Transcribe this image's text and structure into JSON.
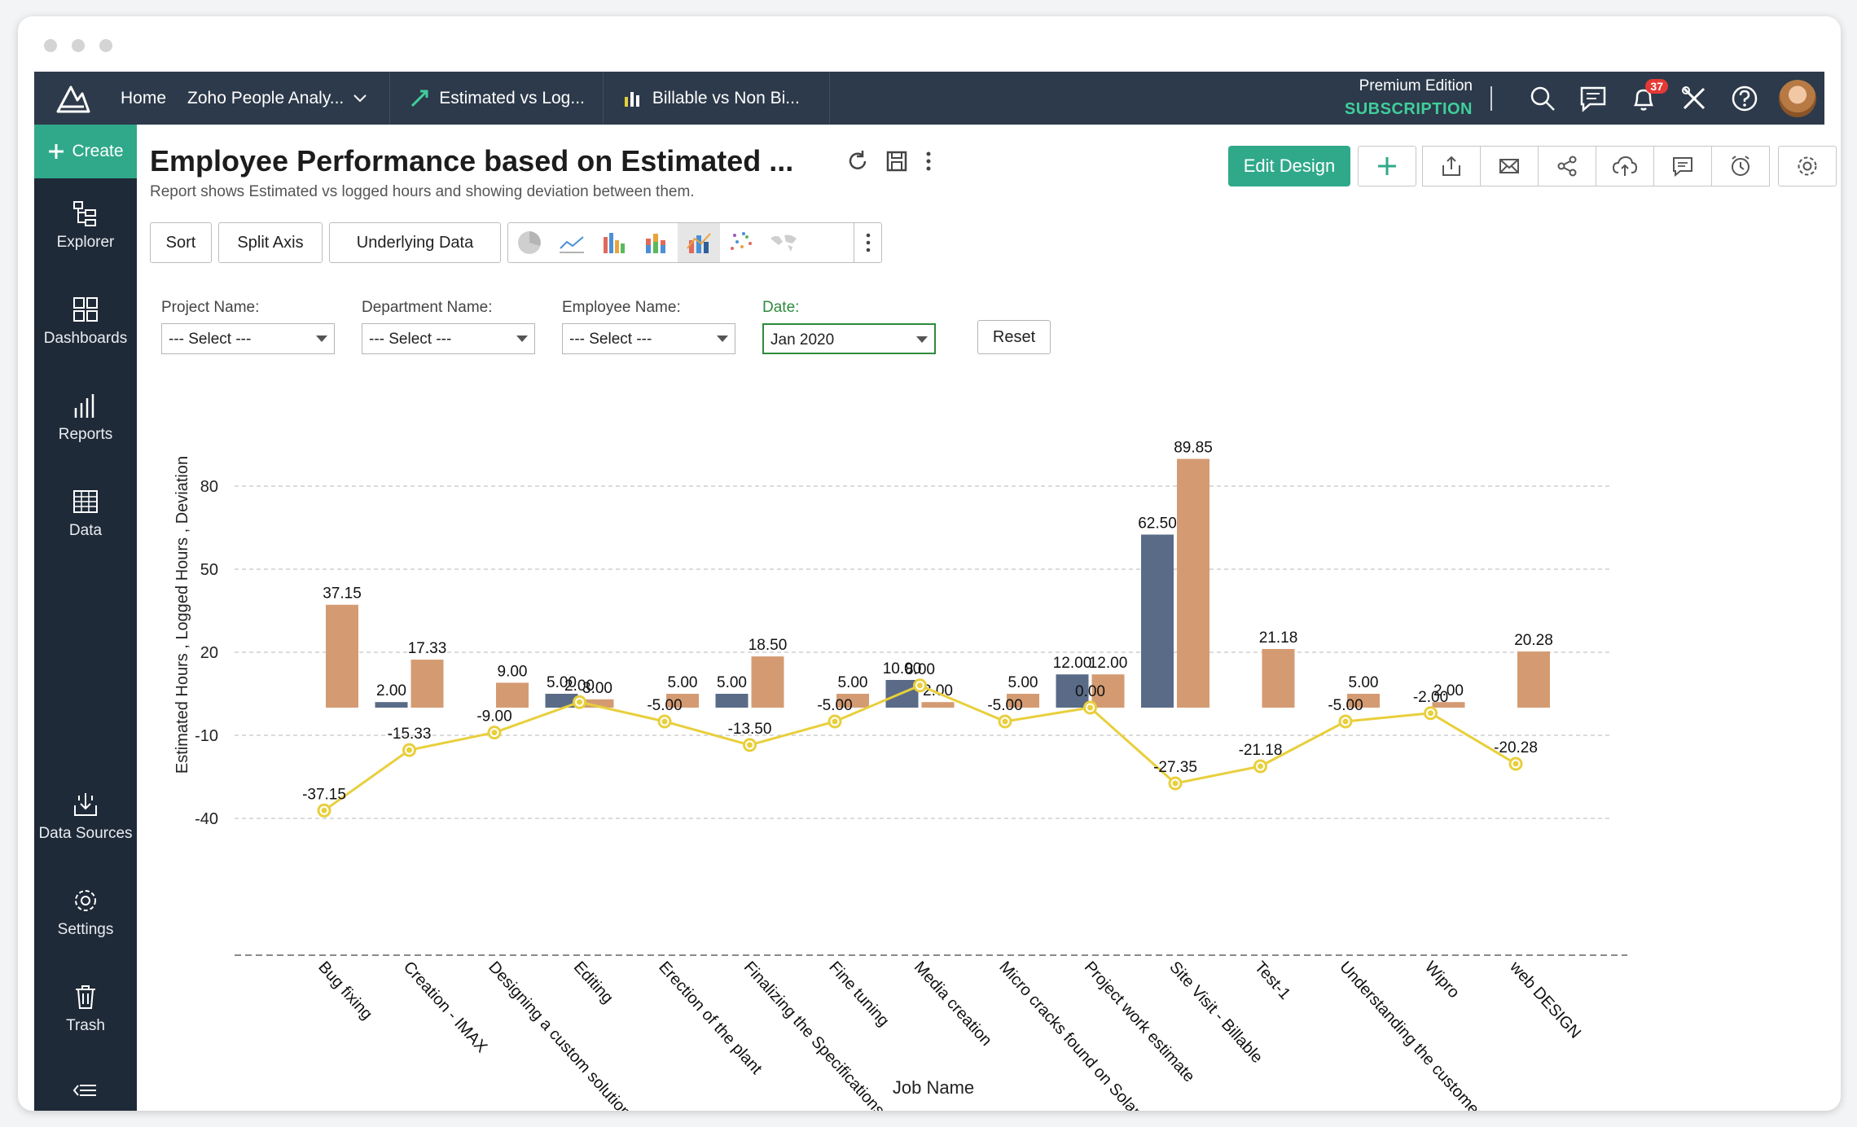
{
  "window": {
    "dots": [
      "",
      "",
      ""
    ]
  },
  "topbar": {
    "home": "Home",
    "workspace": "Zoho People Analy...",
    "tabs": [
      {
        "label": "Estimated vs Log...",
        "icon": "line-chart-icon"
      },
      {
        "label": "Billable vs Non Bi...",
        "icon": "bar-chart-icon"
      }
    ],
    "edition_line1": "Premium Edition",
    "edition_line2": "SUBSCRIPTION",
    "notification_count": "37"
  },
  "sidebar": {
    "create": "Create",
    "items": [
      {
        "label": "Explorer",
        "icon": "explorer-icon"
      },
      {
        "label": "Dashboards",
        "icon": "dashboards-icon"
      },
      {
        "label": "Reports",
        "icon": "reports-icon"
      },
      {
        "label": "Data",
        "icon": "data-icon"
      },
      {
        "label": "Data Sources",
        "icon": "data-sources-icon"
      },
      {
        "label": "Settings",
        "icon": "settings-icon"
      },
      {
        "label": "Trash",
        "icon": "trash-icon"
      }
    ]
  },
  "report": {
    "title": "Employee Performance based on Estimated ...",
    "subtitle": "Report shows Estimated vs logged hours and showing deviation between them.",
    "edit_design": "Edit Design"
  },
  "toolbar": {
    "sort": "Sort",
    "split_axis": "Split Axis",
    "underlying_data": "Underlying Data"
  },
  "filters": {
    "project_label": "Project Name:",
    "project_value": "--- Select ---",
    "department_label": "Department Name:",
    "department_value": "--- Select ---",
    "employee_label": "Employee Name:",
    "employee_value": "--- Select ---",
    "date_label": "Date:",
    "date_value": "Jan 2020",
    "reset": "Reset"
  },
  "colors": {
    "estimated": "#5a6b87",
    "logged": "#d49b72",
    "deviation": "#e8cf3c",
    "accent": "#2fa98a",
    "topbar": "#2d3a4b",
    "sidebar": "#1f2a38"
  },
  "chart_data": {
    "type": "bar",
    "xlabel": "Job Name",
    "ylabel": "Estimated Hours , Logged Hours , Deviation",
    "yticks": [
      80,
      50,
      20,
      -10,
      -40
    ],
    "ylim": [
      -50,
      95
    ],
    "grid": true,
    "categories": [
      "Bug fixing",
      "Creation - IMAX",
      "Designing a custom solution - Billab..",
      "Editing",
      "Erection of the plant",
      "Finalizing the Specifications",
      "Fine tuning",
      "Media creation",
      "Micro cracks found on Solar panel",
      "Project work estimate",
      "Site Visit - Billable",
      "Test-1",
      "Understanding the customer requir..",
      "Wipro",
      "web DESIGN"
    ],
    "series": [
      {
        "type": "bar",
        "values": [
          0,
          2.0,
          0,
          5.0,
          0,
          5.0,
          0,
          10.0,
          0,
          12.0,
          62.5,
          0,
          0,
          0,
          0
        ],
        "labels": [
          "",
          "2.00",
          "",
          "5.00",
          "",
          "5.00",
          "",
          "10.00",
          "",
          "12.00",
          "62.50",
          "",
          "",
          "",
          ""
        ]
      },
      {
        "type": "bar",
        "values": [
          37.15,
          17.33,
          9.0,
          3.0,
          5.0,
          18.5,
          5.0,
          2.0,
          5.0,
          12.0,
          89.85,
          21.18,
          5.0,
          2.0,
          20.28
        ],
        "labels": [
          "37.15",
          "17.33",
          "9.00",
          "3.00",
          "5.00",
          "18.50",
          "5.00",
          "2.00",
          "5.00",
          "12.00",
          "89.85",
          "21.18",
          "5.00",
          "2.00",
          "20.28"
        ]
      },
      {
        "type": "line",
        "values": [
          -37.15,
          -15.33,
          -9.0,
          2.0,
          -5.0,
          -13.5,
          -5.0,
          8.0,
          -5.0,
          0.0,
          -27.35,
          -21.18,
          -5.0,
          -2.0,
          -20.28
        ],
        "labels": [
          "-37.15",
          "-15.33",
          "-9.00",
          "2.00",
          "-5.00",
          "-13.50",
          "-5.00",
          "8.00",
          "-5.00",
          "0.00",
          "-27.35",
          "-21.18",
          "-5.00",
          "-2.00",
          "-20.28"
        ]
      }
    ]
  }
}
